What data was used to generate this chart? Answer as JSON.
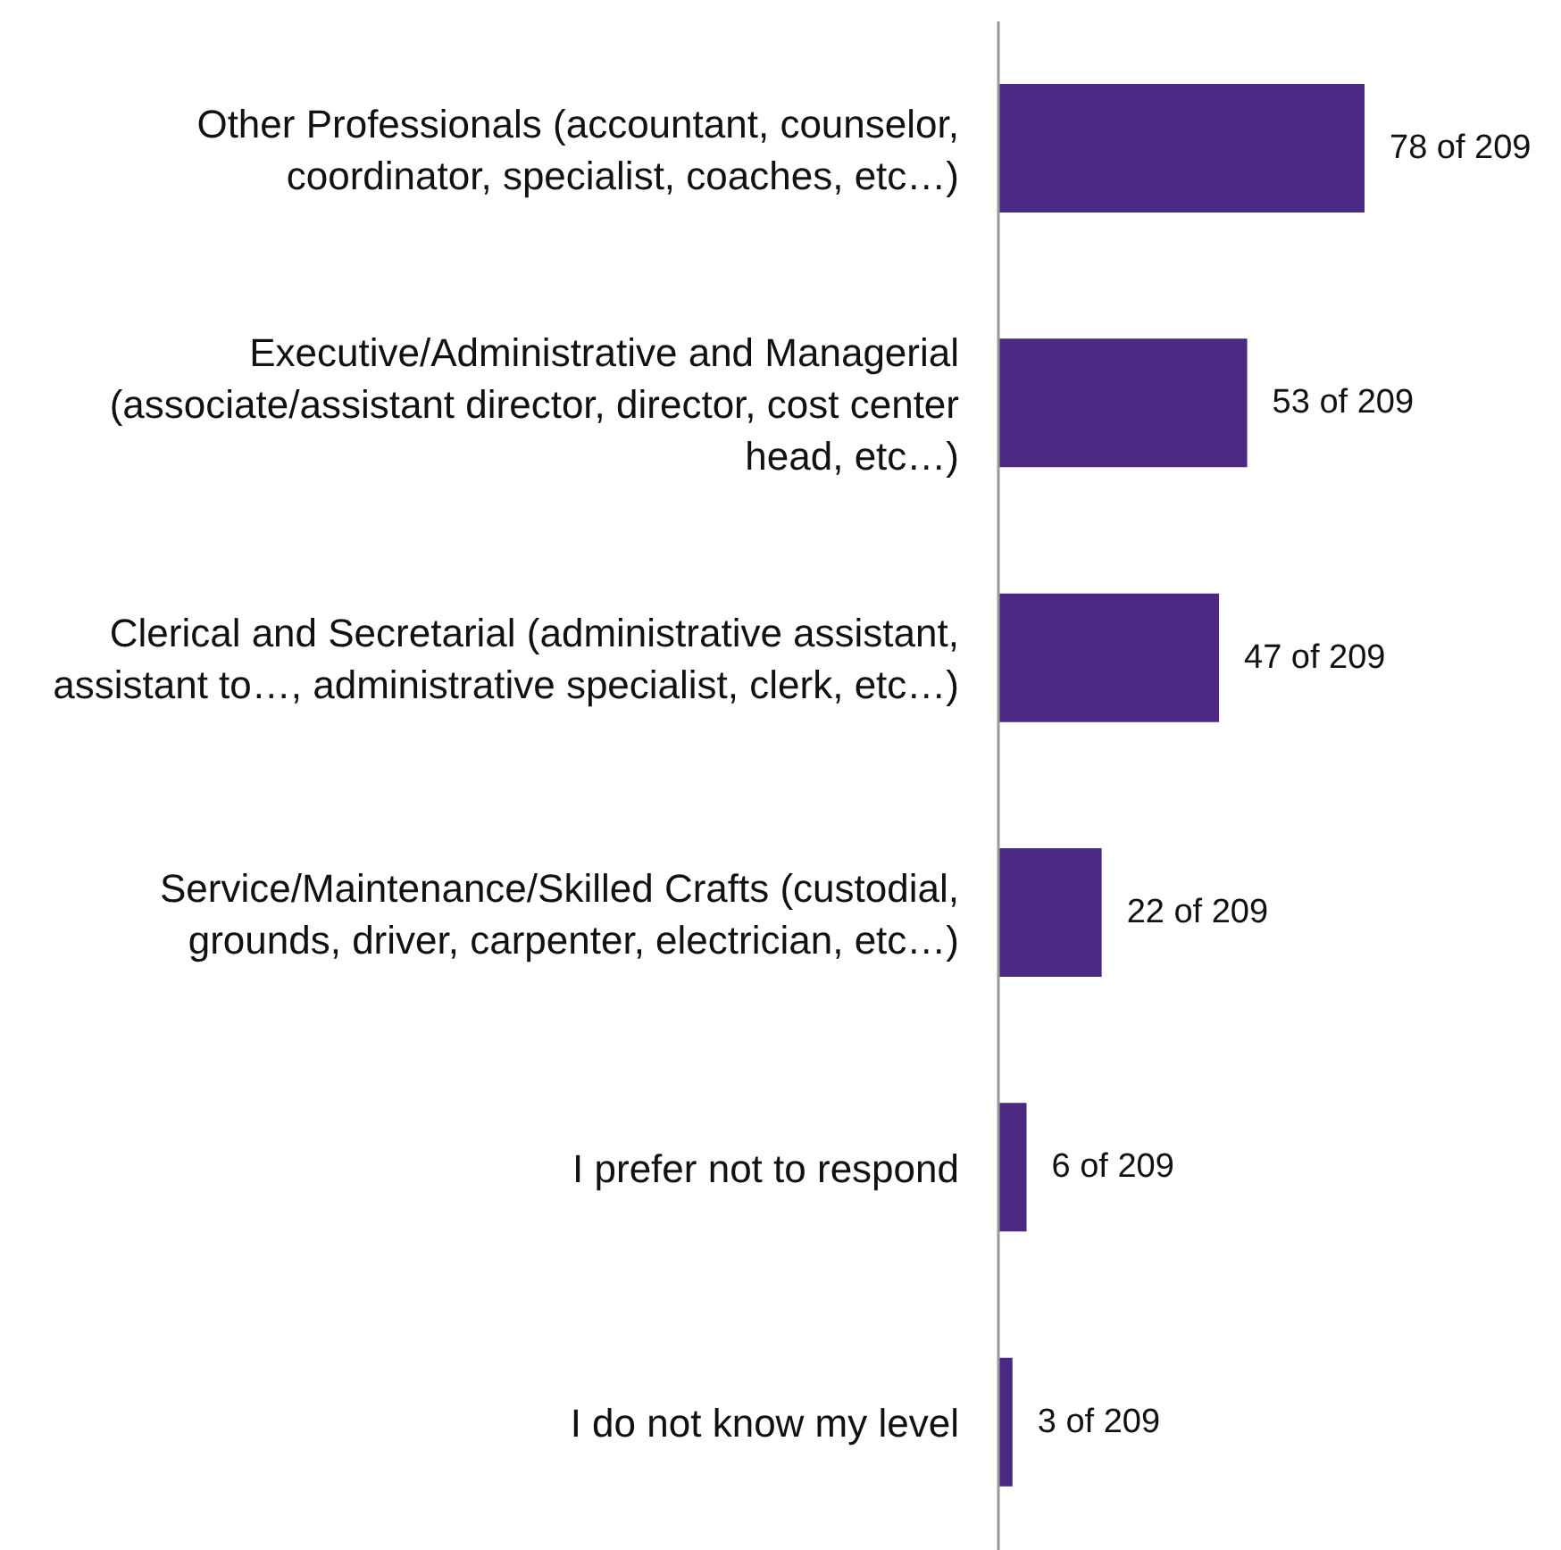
{
  "chart_data": {
    "type": "bar",
    "orientation": "horizontal",
    "categories": [
      "Other Professionals (accountant, counselor, coordinator, specialist, coaches, etc…)",
      "Executive/Administrative and Managerial (associate/assistant director, director, cost center head, etc…)",
      "Clerical and Secretarial (administrative assistant, assistant to…, administrative specialist, clerk, etc…)",
      "Service/Maintenance/Skilled Crafts (custodial, grounds, driver, carpenter, electrician, etc…)",
      "I prefer not to respond",
      "I do not know my level"
    ],
    "values": [
      78,
      53,
      47,
      22,
      6,
      3
    ],
    "value_labels": [
      "78 of 209",
      "53 of 209",
      "47 of 209",
      "22 of 209",
      "6 of 209",
      "3 of 209"
    ],
    "color": "#4b2882",
    "grid": false,
    "legend": false
  }
}
